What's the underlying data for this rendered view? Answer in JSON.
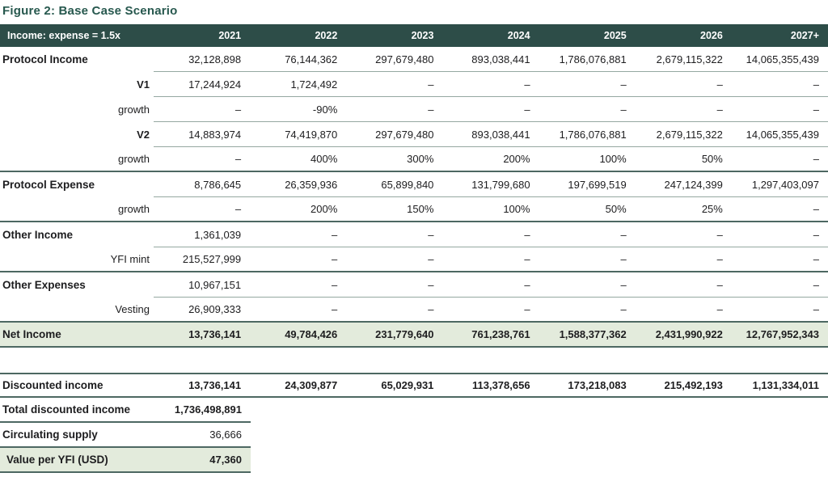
{
  "title": "Figure 2: Base Case Scenario",
  "colors": {
    "header_bg": "#2d4d48",
    "header_text": "#ffffff",
    "title": "#27584e",
    "highlight_bg": "#e3ebdc",
    "border_dark": "#4d6862",
    "border_light": "#95a8a1",
    "text": "#1d1d1f"
  },
  "table": {
    "header": {
      "label": "Income: expense = 1.5x",
      "columns": [
        "2021",
        "2022",
        "2023",
        "2024",
        "2025",
        "2026",
        "2027+"
      ]
    },
    "rows": [
      {
        "label": "Protocol Income",
        "label_style": "main",
        "border": "partial",
        "highlight": false,
        "bold_values": false,
        "values": [
          "32,128,898",
          "76,144,362",
          "297,679,480",
          "893,038,441",
          "1,786,076,881",
          "2,679,115,322",
          "14,065,355,439"
        ]
      },
      {
        "label": "V1",
        "label_style": "sub-bold",
        "border": "partial",
        "highlight": false,
        "bold_values": false,
        "values": [
          "17,244,924",
          "1,724,492",
          "–",
          "–",
          "–",
          "–",
          "–"
        ]
      },
      {
        "label": "growth",
        "label_style": "sub",
        "border": "partial",
        "highlight": false,
        "bold_values": false,
        "values": [
          "–",
          "-90%",
          "–",
          "–",
          "–",
          "–",
          "–"
        ]
      },
      {
        "label": "V2",
        "label_style": "sub-bold",
        "border": "partial",
        "highlight": false,
        "bold_values": false,
        "values": [
          "14,883,974",
          "74,419,870",
          "297,679,480",
          "893,038,441",
          "1,786,076,881",
          "2,679,115,322",
          "14,065,355,439"
        ]
      },
      {
        "label": "growth",
        "label_style": "sub",
        "border": "full",
        "highlight": false,
        "bold_values": false,
        "values": [
          "–",
          "400%",
          "300%",
          "200%",
          "100%",
          "50%",
          "–"
        ]
      },
      {
        "label": "Protocol Expense",
        "label_style": "main",
        "border": "partial",
        "highlight": false,
        "bold_values": false,
        "values": [
          "8,786,645",
          "26,359,936",
          "65,899,840",
          "131,799,680",
          "197,699,519",
          "247,124,399",
          "1,297,403,097"
        ]
      },
      {
        "label": "growth",
        "label_style": "sub",
        "border": "full",
        "highlight": false,
        "bold_values": false,
        "values": [
          "–",
          "200%",
          "150%",
          "100%",
          "50%",
          "25%",
          "–"
        ]
      },
      {
        "label": "Other Income",
        "label_style": "main",
        "border": "partial",
        "highlight": false,
        "bold_values": false,
        "values": [
          "1,361,039",
          "–",
          "–",
          "–",
          "–",
          "–",
          "–"
        ]
      },
      {
        "label": "YFI mint",
        "label_style": "sub",
        "border": "full",
        "highlight": false,
        "bold_values": false,
        "values": [
          "215,527,999",
          "–",
          "–",
          "–",
          "–",
          "–",
          "–"
        ]
      },
      {
        "label": "Other Expenses",
        "label_style": "main",
        "border": "partial",
        "highlight": false,
        "bold_values": false,
        "values": [
          "10,967,151",
          "–",
          "–",
          "–",
          "–",
          "–",
          "–"
        ]
      },
      {
        "label": "Vesting",
        "label_style": "sub",
        "border": "full",
        "highlight": false,
        "bold_values": false,
        "values": [
          "26,909,333",
          "–",
          "–",
          "–",
          "–",
          "–",
          "–"
        ]
      },
      {
        "label": "Net Income",
        "label_style": "main",
        "border": "full",
        "highlight": true,
        "bold_values": true,
        "values": [
          "13,736,141",
          "49,784,426",
          "231,779,640",
          "761,238,761",
          "1,588,377,362",
          "2,431,990,922",
          "12,767,952,343"
        ]
      }
    ],
    "summary": {
      "wide_row": {
        "label": "Discounted income",
        "bold_values": true,
        "values": [
          "13,736,141",
          "24,309,877",
          "65,029,931",
          "113,378,656",
          "173,218,083",
          "215,492,193",
          "1,131,334,011"
        ]
      },
      "narrow_rows": [
        {
          "label": "Total discounted income",
          "value": "1,736,498,891",
          "bold_value": true,
          "highlight": false
        },
        {
          "label": "Circulating supply",
          "value": "36,666",
          "bold_value": false,
          "highlight": false
        },
        {
          "label": "Value per YFI (USD)",
          "value": "47,360",
          "bold_value": true,
          "highlight": true
        }
      ]
    }
  }
}
